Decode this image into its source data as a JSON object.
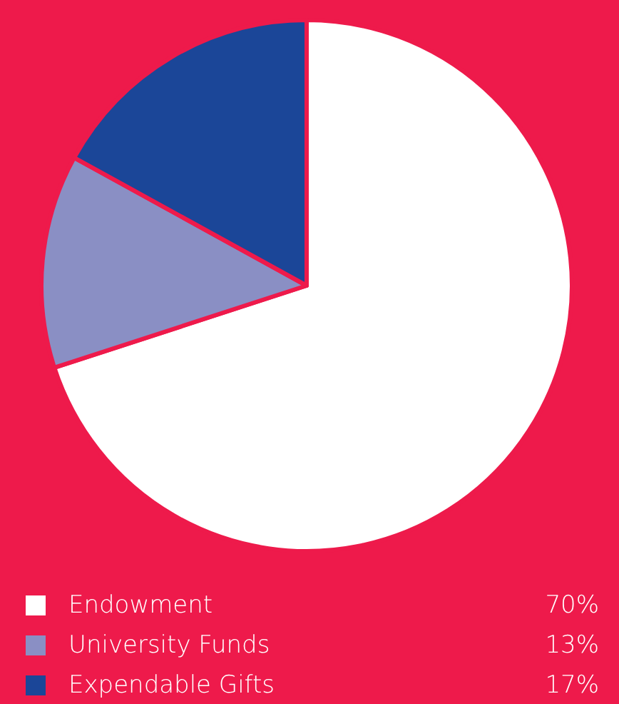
{
  "chart_data": {
    "type": "pie",
    "categories": [
      "Endowment",
      "University Funds",
      "Expendable Gifts"
    ],
    "values": [
      70,
      13,
      17
    ],
    "colors": [
      "#ffffff",
      "#8a8fc4",
      "#1b4698"
    ],
    "value_labels": [
      "70%",
      "13%",
      "17%"
    ],
    "legend": "bottom"
  }
}
